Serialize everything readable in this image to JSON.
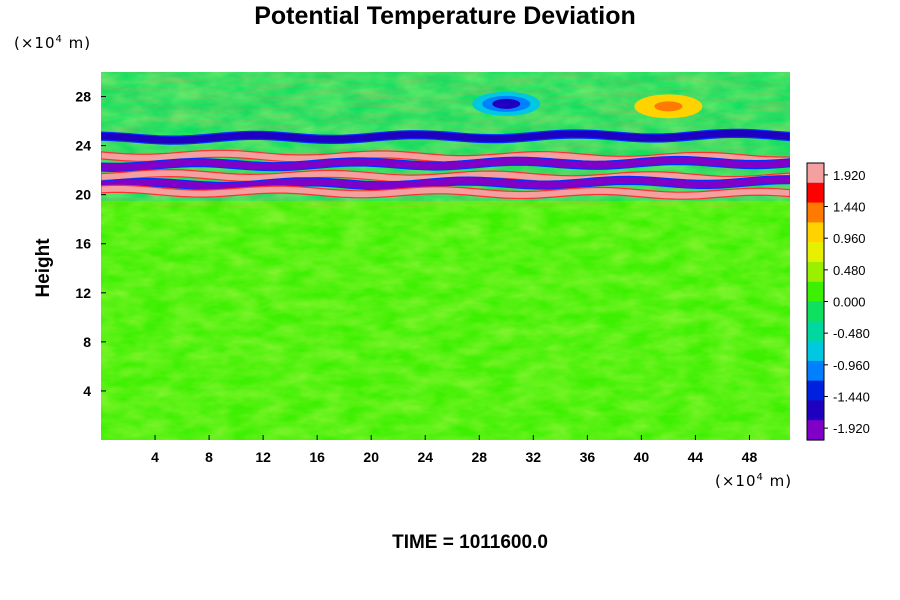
{
  "chart_data": {
    "type": "heatmap",
    "title": "Potential Temperature Deviation",
    "ylabel": "Height",
    "xlabel": "",
    "x_unit": {
      "prefix": "(×10",
      "exp": "4",
      "suffix": " m)"
    },
    "y_unit": {
      "prefix": "(×10",
      "exp": "4",
      "suffix": " m)"
    },
    "xlim": [
      0,
      51
    ],
    "ylim": [
      0,
      30
    ],
    "xticks": [
      4,
      8,
      12,
      16,
      20,
      24,
      28,
      32,
      36,
      40,
      44,
      48
    ],
    "yticks": [
      4,
      8,
      12,
      16,
      20,
      24,
      28
    ],
    "colorbar": {
      "min": -2.1,
      "max": 2.1,
      "ticks": [
        "1.920",
        "1.440",
        "0.960",
        "0.480",
        "0.000",
        "-0.480",
        "-0.960",
        "-1.440",
        "-1.920"
      ],
      "colors_high_to_low": [
        "#f4a0a0",
        "#ff0000",
        "#ff7a00",
        "#ffd200",
        "#e6f000",
        "#9af000",
        "#3cf000",
        "#10e060",
        "#00d8a0",
        "#00c8e0",
        "#0080ff",
        "#0020e0",
        "#2000c0",
        "#8000c8"
      ]
    },
    "features": [
      {
        "name": "positive band",
        "y": 23.2,
        "value": 1.9
      },
      {
        "name": "negative band",
        "y": 22.4,
        "value": -1.9
      },
      {
        "name": "positive band",
        "y": 21.6,
        "value": 1.9
      },
      {
        "name": "negative band",
        "y": 20.8,
        "value": -1.9
      },
      {
        "name": "positive band",
        "y": 20.3,
        "value": 1.9
      },
      {
        "name": "negative band",
        "y": 24.6,
        "value": -1.7
      },
      {
        "name": "negative anomaly",
        "x": 30,
        "y": 27.4,
        "value": -1.7
      },
      {
        "name": "positive anomaly",
        "x": 42,
        "y": 27.2,
        "value": 1.3
      }
    ],
    "background_value": 0.0,
    "colors": {
      "background": "#3cf000",
      "upper_layer": "#10e060"
    }
  },
  "footer": {
    "time_text": "TIME = 1011600.0"
  }
}
